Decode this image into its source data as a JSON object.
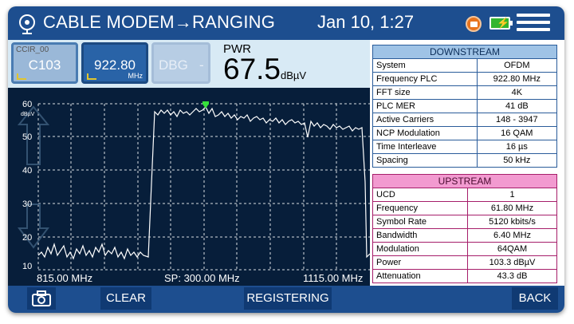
{
  "header": {
    "title": "CABLE MODEM→RANGING",
    "datetime": "Jan 10,  1:27",
    "icons": [
      "tv-logo-icon",
      "message-icon",
      "battery-charging-icon",
      "menu-icon"
    ]
  },
  "channels": [
    {
      "label": "CCIR_00",
      "value": "C103",
      "unit": ""
    },
    {
      "label": "",
      "value": "922.80",
      "unit": "MHz"
    },
    {
      "label": "",
      "value": "DBG",
      "unit": "-"
    }
  ],
  "power": {
    "label": "PWR",
    "value": "67.5",
    "unit": "dBµV"
  },
  "spectrum": {
    "y_ticks": [
      "60",
      "50",
      "40",
      "30",
      "20",
      "10"
    ],
    "y_unit": "dBµV",
    "start": "815.00 MHz",
    "span": "SP: 300.00 MHz",
    "stop": "1115.00 MHz"
  },
  "downstream": {
    "title": "DOWNSTREAM",
    "rows": [
      {
        "k": "System",
        "v": "OFDM"
      },
      {
        "k": "Frequency PLC",
        "v": "922.80 MHz"
      },
      {
        "k": "FFT size",
        "v": "4K"
      },
      {
        "k": "PLC MER",
        "v": "41 dB"
      },
      {
        "k": "Active Carriers",
        "v": "148 - 3947"
      },
      {
        "k": "NCP Modulation",
        "v": "16 QAM"
      },
      {
        "k": "Time Interleave",
        "v": "16 µs"
      },
      {
        "k": "Spacing",
        "v": "50 kHz"
      }
    ]
  },
  "upstream": {
    "title": "UPSTREAM",
    "rows": [
      {
        "k": "UCD",
        "v": "1"
      },
      {
        "k": "Frequency",
        "v": "61.80 MHz"
      },
      {
        "k": "Symbol Rate",
        "v": "5120 kbits/s"
      },
      {
        "k": "Bandwidth",
        "v": "6.40 MHz"
      },
      {
        "k": "Modulation",
        "v": "64QAM"
      },
      {
        "k": "Power",
        "v": "103.3 dBµV"
      },
      {
        "k": "Attenuation",
        "v": "43.3 dB"
      }
    ]
  },
  "footer": {
    "clear": "CLEAR",
    "registering": "REGISTERING",
    "back": "BACK"
  }
}
